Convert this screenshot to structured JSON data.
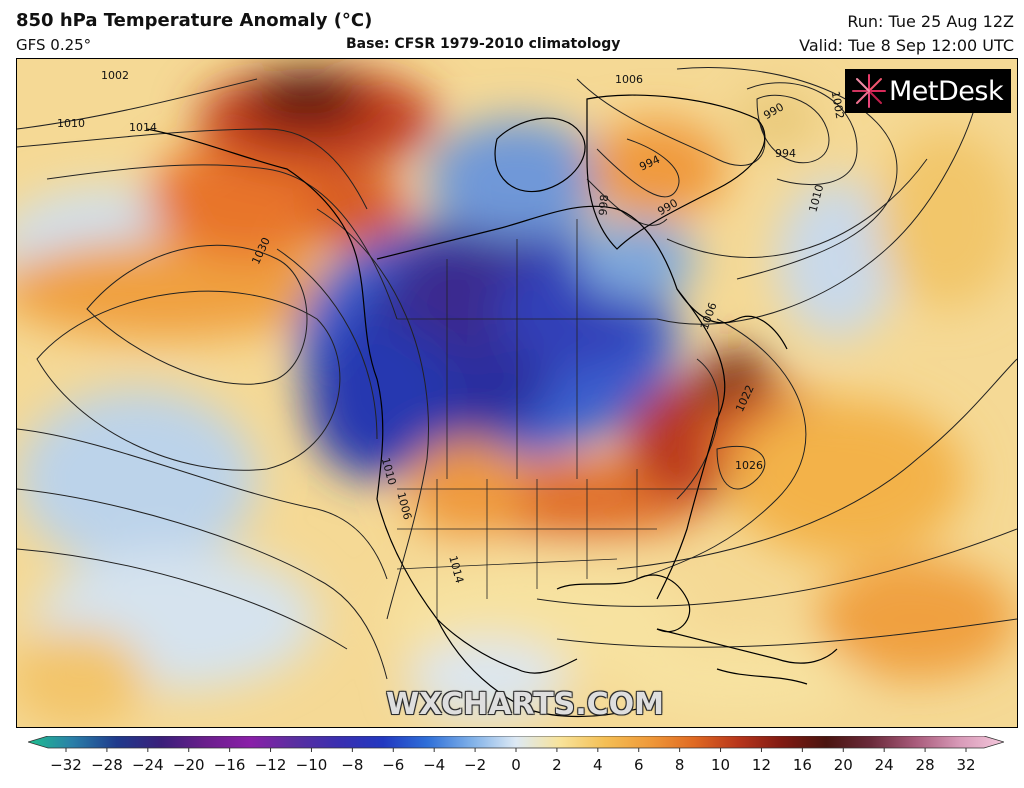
{
  "header": {
    "title": "850 hPa Temperature Anomaly (°C)",
    "model": "GFS 0.25°",
    "base": "Base: CFSR 1979-2010 climatology",
    "run": "Run: Tue 25 Aug 12Z",
    "valid": "Valid: Tue 8 Sep 12:00 UTC"
  },
  "logo": {
    "text": "MetDesk",
    "icon": "metdesk-starburst-icon"
  },
  "watermark": "WXCHARTS.COM",
  "isobar_labels": [
    "1002",
    "1010",
    "1014",
    "1030",
    "1006",
    "994",
    "990",
    "998",
    "990",
    "994",
    "1002",
    "1010",
    "1006",
    "1022",
    "1026",
    "1010",
    "1014",
    "1006"
  ],
  "colorbar": {
    "ticks": [
      "−32",
      "−28",
      "−24",
      "−20",
      "−16",
      "−12",
      "−10",
      "−8",
      "−6",
      "−4",
      "−2",
      "0",
      "2",
      "4",
      "6",
      "8",
      "10",
      "12",
      "16",
      "20",
      "24",
      "28",
      "32"
    ],
    "colors": [
      "#1fbf8f",
      "#2a7fa8",
      "#1f3a8c",
      "#3a1f7a",
      "#6a1f8c",
      "#8a1fa8",
      "#5a2fa0",
      "#3a2fb0",
      "#2238c0",
      "#2f6fd8",
      "#7fb0e8",
      "#dde9f4",
      "#f8e39a",
      "#f4bf55",
      "#ef9a3a",
      "#e06a22",
      "#b8361b",
      "#801a12",
      "#4a140f",
      "#6a2a3a",
      "#a85a7a",
      "#d89ab8",
      "#f4c8dc"
    ]
  },
  "colors": {
    "background": "#ffffff",
    "cold_deep": "#2b1f8f",
    "cold": "#2f5fd0",
    "cool": "#bcd6ef",
    "neutral": "#f6f0d8",
    "warm": "#f4c05a",
    "hot": "#e06a22",
    "very_hot": "#a81e14"
  }
}
